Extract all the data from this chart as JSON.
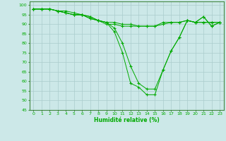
{
  "title": "",
  "xlabel": "Humidité relative (%)",
  "ylabel": "",
  "background_color": "#cce8e8",
  "grid_color": "#aacccc",
  "line_color": "#00aa00",
  "marker_color": "#00aa00",
  "xlim": [
    -0.5,
    23.5
  ],
  "ylim": [
    45,
    102
  ],
  "yticks": [
    45,
    50,
    55,
    60,
    65,
    70,
    75,
    80,
    85,
    90,
    95,
    100
  ],
  "xticks": [
    0,
    1,
    2,
    3,
    4,
    5,
    6,
    7,
    8,
    9,
    10,
    11,
    12,
    13,
    14,
    15,
    16,
    17,
    18,
    19,
    20,
    21,
    22,
    23
  ],
  "xtick_labels": [
    "0",
    "1",
    "2",
    "3",
    "4",
    "5",
    "6",
    "7",
    "8",
    "9",
    "10",
    "11",
    "12",
    "13",
    "14",
    "15",
    "16",
    "17",
    "18",
    "19",
    "20",
    "21",
    "22",
    "23"
  ],
  "series": [
    [
      98,
      98,
      98,
      97,
      96,
      95,
      95,
      93,
      92,
      91,
      86,
      75,
      59,
      57,
      53,
      53,
      66,
      76,
      83,
      92,
      91,
      94,
      89,
      91
    ],
    [
      98,
      98,
      98,
      97,
      96,
      95,
      95,
      94,
      92,
      91,
      91,
      90,
      90,
      89,
      89,
      89,
      91,
      91,
      91,
      92,
      91,
      91,
      91,
      91
    ],
    [
      98,
      98,
      98,
      97,
      97,
      96,
      95,
      94,
      92,
      90,
      90,
      89,
      89,
      89,
      89,
      89,
      90,
      91,
      91,
      92,
      91,
      91,
      91,
      91
    ],
    [
      98,
      98,
      98,
      97,
      96,
      95,
      95,
      93,
      92,
      91,
      88,
      80,
      68,
      59,
      56,
      56,
      66,
      76,
      83,
      92,
      91,
      94,
      89,
      91
    ]
  ]
}
